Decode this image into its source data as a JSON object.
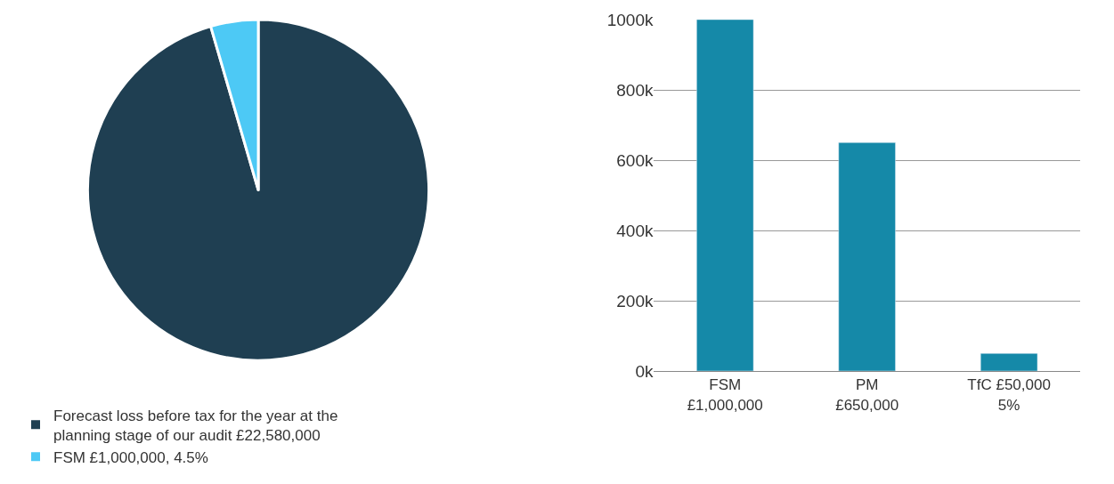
{
  "chart_data": [
    {
      "type": "pie",
      "categories": [
        "Forecast loss before tax for the year at the planning stage of our audit £22,580,000",
        "FSM £1,000,000, 4.5%"
      ],
      "values": [
        95.5,
        4.5
      ],
      "colors": [
        "#1f3f52",
        "#4dc9f5"
      ],
      "legend": "bottom left"
    },
    {
      "type": "bar",
      "categories": [
        "FSM\n£1,000,000",
        "PM\n£650,000",
        "TfC £50,000\n5%"
      ],
      "values": [
        1000000,
        650000,
        50000
      ],
      "color": "#1589a8",
      "ylim": [
        0,
        1000000
      ],
      "yticks": [
        {
          "value": 0,
          "label": "0k"
        },
        {
          "value": 200000,
          "label": "200k"
        },
        {
          "value": 400000,
          "label": "400k"
        },
        {
          "value": 600000,
          "label": "600k"
        },
        {
          "value": 800000,
          "label": "800k"
        },
        {
          "value": 1000000,
          "label": "1000k"
        }
      ],
      "grid": "y"
    }
  ]
}
